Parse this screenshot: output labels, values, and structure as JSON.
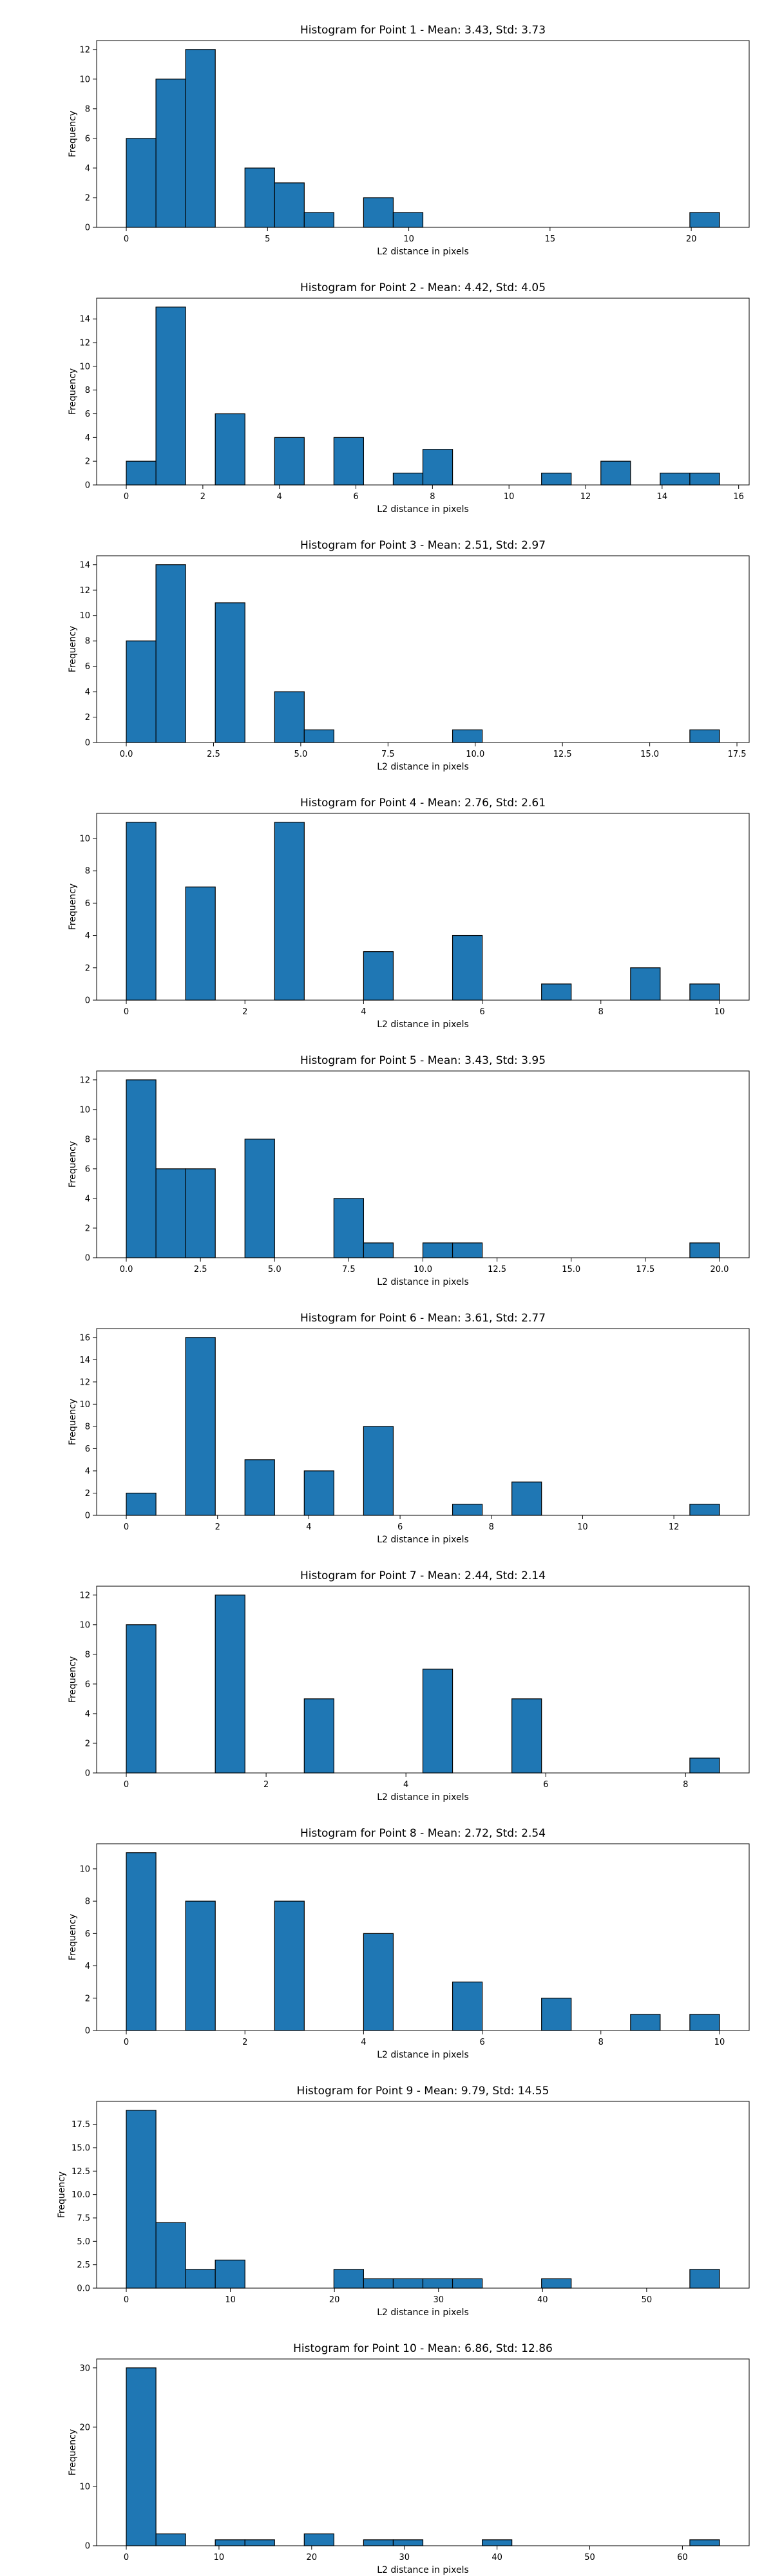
{
  "chart_data": [
    {
      "type": "bar",
      "title": "Histogram for Point 1 - Mean: 3.43, Std: 3.73",
      "xlabel": "L2 distance in pixels",
      "ylabel": "Frequency",
      "bins": [
        0.0,
        1.05,
        2.1,
        3.15,
        4.2,
        5.25,
        6.3,
        7.35,
        8.4,
        9.45,
        10.5,
        11.55,
        12.6,
        13.65,
        14.7,
        15.75,
        16.8,
        17.85,
        18.9,
        19.95,
        21.0
      ],
      "counts": [
        6,
        10,
        12,
        0,
        4,
        3,
        1,
        0,
        2,
        1,
        0,
        0,
        0,
        0,
        0,
        0,
        0,
        0,
        0,
        1
      ],
      "xlim": [
        -1.05,
        22.05
      ],
      "ylim": [
        0,
        12.6
      ],
      "xticks": [
        0,
        5,
        10,
        15,
        20
      ],
      "xtick_labels": [
        "0",
        "5",
        "10",
        "15",
        "20"
      ],
      "yticks": [
        0,
        2,
        4,
        6,
        8,
        10,
        12
      ],
      "ytick_labels": [
        "0",
        "2",
        "4",
        "6",
        "8",
        "10",
        "12"
      ]
    },
    {
      "type": "bar",
      "title": "Histogram for Point 2 - Mean: 4.42, Std: 4.05",
      "xlabel": "L2 distance in pixels",
      "ylabel": "Frequency",
      "bins": [
        0.0,
        0.775,
        1.55,
        2.325,
        3.1,
        3.875,
        4.65,
        5.425,
        6.2,
        6.975,
        7.75,
        8.525,
        9.3,
        10.075,
        10.85,
        11.625,
        12.4,
        13.175,
        13.95,
        14.725,
        15.5
      ],
      "counts": [
        2,
        15,
        0,
        6,
        0,
        4,
        0,
        4,
        0,
        1,
        3,
        0,
        0,
        0,
        1,
        0,
        2,
        0,
        1,
        1
      ],
      "xlim": [
        -0.775,
        16.275
      ],
      "ylim": [
        0,
        15.75
      ],
      "xticks": [
        0,
        2,
        4,
        6,
        8,
        10,
        12,
        14,
        16
      ],
      "xtick_labels": [
        "0",
        "2",
        "4",
        "6",
        "8",
        "10",
        "12",
        "14",
        "16"
      ],
      "yticks": [
        0,
        2,
        4,
        6,
        8,
        10,
        12,
        14
      ],
      "ytick_labels": [
        "0",
        "2",
        "4",
        "6",
        "8",
        "10",
        "12",
        "14"
      ]
    },
    {
      "type": "bar",
      "title": "Histogram for Point 3 - Mean: 2.51, Std: 2.97",
      "xlabel": "L2 distance in pixels",
      "ylabel": "Frequency",
      "bins": [
        0.0,
        0.85,
        1.7,
        2.55,
        3.4,
        4.25,
        5.1,
        5.95,
        6.8,
        7.65,
        8.5,
        9.35,
        10.2,
        11.05,
        11.9,
        12.75,
        13.6,
        14.45,
        15.3,
        16.15,
        17.0
      ],
      "counts": [
        8,
        14,
        0,
        11,
        0,
        4,
        1,
        0,
        0,
        0,
        0,
        1,
        0,
        0,
        0,
        0,
        0,
        0,
        0,
        1
      ],
      "xlim": [
        -0.85,
        17.85
      ],
      "ylim": [
        0,
        14.7
      ],
      "xticks": [
        0,
        2.5,
        5,
        7.5,
        10,
        12.5,
        15,
        17.5
      ],
      "xtick_labels": [
        "0.0",
        "2.5",
        "5.0",
        "7.5",
        "10.0",
        "12.5",
        "15.0",
        "17.5"
      ],
      "yticks": [
        0,
        2,
        4,
        6,
        8,
        10,
        12,
        14
      ],
      "ytick_labels": [
        "0",
        "2",
        "4",
        "6",
        "8",
        "10",
        "12",
        "14"
      ]
    },
    {
      "type": "bar",
      "title": "Histogram for Point 4 - Mean: 2.76, Std: 2.61",
      "xlabel": "L2 distance in pixels",
      "ylabel": "Frequency",
      "bins": [
        0.0,
        0.5,
        1.0,
        1.5,
        2.0,
        2.5,
        3.0,
        3.5,
        4.0,
        4.5,
        5.0,
        5.5,
        6.0,
        6.5,
        7.0,
        7.5,
        8.0,
        8.5,
        9.0,
        9.5,
        10.0
      ],
      "counts": [
        11,
        0,
        7,
        0,
        0,
        11,
        0,
        0,
        3,
        0,
        0,
        4,
        0,
        0,
        1,
        0,
        0,
        2,
        0,
        1
      ],
      "xlim": [
        -0.5,
        10.5
      ],
      "ylim": [
        0,
        11.55
      ],
      "xticks": [
        0,
        2,
        4,
        6,
        8,
        10
      ],
      "xtick_labels": [
        "0",
        "2",
        "4",
        "6",
        "8",
        "10"
      ],
      "yticks": [
        0,
        2,
        4,
        6,
        8,
        10
      ],
      "ytick_labels": [
        "0",
        "2",
        "4",
        "6",
        "8",
        "10"
      ]
    },
    {
      "type": "bar",
      "title": "Histogram for Point 5 - Mean: 3.43, Std: 3.95",
      "xlabel": "L2 distance in pixels",
      "ylabel": "Frequency",
      "bins": [
        0.0,
        1.0,
        2.0,
        3.0,
        4.0,
        5.0,
        6.0,
        7.0,
        8.0,
        9.0,
        10.0,
        11.0,
        12.0,
        13.0,
        14.0,
        15.0,
        16.0,
        17.0,
        18.0,
        19.0,
        20.0
      ],
      "counts": [
        12,
        6,
        6,
        0,
        8,
        0,
        0,
        4,
        1,
        0,
        1,
        1,
        0,
        0,
        0,
        0,
        0,
        0,
        0,
        1
      ],
      "xlim": [
        -1.0,
        21.0
      ],
      "ylim": [
        0,
        12.6
      ],
      "xticks": [
        0,
        2.5,
        5,
        7.5,
        10,
        12.5,
        15,
        17.5,
        20
      ],
      "xtick_labels": [
        "0.0",
        "2.5",
        "5.0",
        "7.5",
        "10.0",
        "12.5",
        "15.0",
        "17.5",
        "20.0"
      ],
      "yticks": [
        0,
        2,
        4,
        6,
        8,
        10,
        12
      ],
      "ytick_labels": [
        "0",
        "2",
        "4",
        "6",
        "8",
        "10",
        "12"
      ]
    },
    {
      "type": "bar",
      "title": "Histogram for Point 6 - Mean: 3.61, Std: 2.77",
      "xlabel": "L2 distance in pixels",
      "ylabel": "Frequency",
      "bins": [
        0.0,
        0.65,
        1.3,
        1.95,
        2.6,
        3.25,
        3.9,
        4.55,
        5.2,
        5.85,
        6.5,
        7.15,
        7.8,
        8.45,
        9.1,
        9.75,
        10.4,
        11.05,
        11.7,
        12.35,
        13.0
      ],
      "counts": [
        2,
        0,
        16,
        0,
        5,
        0,
        4,
        0,
        8,
        0,
        0,
        1,
        0,
        3,
        0,
        0,
        0,
        0,
        0,
        1
      ],
      "xlim": [
        -0.65,
        13.65
      ],
      "ylim": [
        0,
        16.8
      ],
      "xticks": [
        0,
        2,
        4,
        6,
        8,
        10,
        12
      ],
      "xtick_labels": [
        "0",
        "2",
        "4",
        "6",
        "8",
        "10",
        "12"
      ],
      "yticks": [
        0,
        2,
        4,
        6,
        8,
        10,
        12,
        14,
        16
      ],
      "ytick_labels": [
        "0",
        "2",
        "4",
        "6",
        "8",
        "10",
        "12",
        "14",
        "16"
      ]
    },
    {
      "type": "bar",
      "title": "Histogram for Point 7 - Mean: 2.44, Std: 2.14",
      "xlabel": "L2 distance in pixels",
      "ylabel": "Frequency",
      "bins": [
        0.0,
        0.4243,
        0.8485,
        1.2728,
        1.6971,
        2.1213,
        2.5456,
        2.9698,
        3.3941,
        3.8184,
        4.2426,
        4.6669,
        5.0912,
        5.5154,
        5.9397,
        6.364,
        6.7882,
        7.2125,
        7.6368,
        8.061,
        8.4853
      ],
      "counts": [
        10,
        0,
        0,
        12,
        0,
        0,
        5,
        0,
        0,
        0,
        7,
        0,
        0,
        5,
        0,
        0,
        0,
        0,
        0,
        1
      ],
      "xlim": [
        -0.4243,
        8.9096
      ],
      "ylim": [
        0,
        12.6
      ],
      "xticks": [
        0,
        2,
        4,
        6,
        8
      ],
      "xtick_labels": [
        "0",
        "2",
        "4",
        "6",
        "8"
      ],
      "yticks": [
        0,
        2,
        4,
        6,
        8,
        10,
        12
      ],
      "ytick_labels": [
        "0",
        "2",
        "4",
        "6",
        "8",
        "10",
        "12"
      ]
    },
    {
      "type": "bar",
      "title": "Histogram for Point 8 - Mean: 2.72, Std: 2.54",
      "xlabel": "L2 distance in pixels",
      "ylabel": "Frequency",
      "bins": [
        0.0,
        0.5,
        1.0,
        1.5,
        2.0,
        2.5,
        3.0,
        3.5,
        4.0,
        4.5,
        5.0,
        5.5,
        6.0,
        6.5,
        7.0,
        7.5,
        8.0,
        8.5,
        9.0,
        9.5,
        10.0
      ],
      "counts": [
        11,
        0,
        8,
        0,
        0,
        8,
        0,
        0,
        6,
        0,
        0,
        3,
        0,
        0,
        2,
        0,
        0,
        1,
        0,
        1
      ],
      "xlim": [
        -0.5,
        10.5
      ],
      "ylim": [
        0,
        11.55
      ],
      "xticks": [
        0,
        2,
        4,
        6,
        8,
        10
      ],
      "xtick_labels": [
        "0",
        "2",
        "4",
        "6",
        "8",
        "10"
      ],
      "yticks": [
        0,
        2,
        4,
        6,
        8,
        10
      ],
      "ytick_labels": [
        "0",
        "2",
        "4",
        "6",
        "8",
        "10"
      ]
    },
    {
      "type": "bar",
      "title": "Histogram for Point 9 - Mean: 9.79, Std: 14.55",
      "xlabel": "L2 distance in pixels",
      "ylabel": "Frequency",
      "bins": [
        0.0,
        2.85,
        5.7,
        8.55,
        11.4,
        14.25,
        17.1,
        19.95,
        22.8,
        25.65,
        28.5,
        31.35,
        34.2,
        37.05,
        39.9,
        42.75,
        45.6,
        48.45,
        51.3,
        54.15,
        57.0
      ],
      "counts": [
        19,
        7,
        2,
        3,
        0,
        0,
        0,
        2,
        1,
        1,
        1,
        1,
        0,
        0,
        1,
        0,
        0,
        0,
        0,
        2
      ],
      "xlim": [
        -2.85,
        59.85
      ],
      "ylim": [
        0,
        19.95
      ],
      "xticks": [
        0,
        10,
        20,
        30,
        40,
        50
      ],
      "xtick_labels": [
        "0",
        "10",
        "20",
        "30",
        "40",
        "50"
      ],
      "yticks": [
        0,
        2.5,
        5,
        7.5,
        10,
        12.5,
        15,
        17.5
      ],
      "ytick_labels": [
        "0.0",
        "2.5",
        "5.0",
        "7.5",
        "10.0",
        "12.5",
        "15.0",
        "17.5"
      ]
    },
    {
      "type": "bar",
      "title": "Histogram for Point 10 - Mean: 6.86, Std: 12.86",
      "xlabel": "L2 distance in pixels",
      "ylabel": "Frequency",
      "bins": [
        0.0,
        3.2,
        6.4,
        9.6,
        12.8,
        16.0,
        19.2,
        22.4,
        25.6,
        28.8,
        32.0,
        35.2,
        38.4,
        41.6,
        44.8,
        48.0,
        51.2,
        54.4,
        57.6,
        60.8,
        64.0
      ],
      "counts": [
        30,
        2,
        0,
        1,
        1,
        0,
        2,
        0,
        1,
        1,
        0,
        0,
        1,
        0,
        0,
        0,
        0,
        0,
        0,
        1
      ],
      "xlim": [
        -3.2,
        67.2
      ],
      "ylim": [
        0,
        31.5
      ],
      "xticks": [
        0,
        10,
        20,
        30,
        40,
        50,
        60
      ],
      "xtick_labels": [
        "0",
        "10",
        "20",
        "30",
        "40",
        "50",
        "60"
      ],
      "yticks": [
        0,
        10,
        20,
        30
      ],
      "ytick_labels": [
        "0",
        "10",
        "20",
        "30"
      ]
    }
  ],
  "colors": {
    "bar_fill": "#1f77b4",
    "bar_edge": "#000000",
    "axes": "#000000",
    "background": "#ffffff"
  }
}
